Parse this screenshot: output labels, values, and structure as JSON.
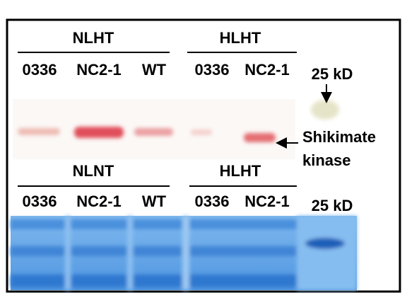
{
  "top_panel": {
    "groups": [
      "NLHT",
      "HLHT"
    ],
    "lanes": [
      "0336",
      "NC2-1",
      "WT",
      "0336",
      "NC2-1"
    ],
    "marker": "25 kD",
    "band_label": [
      "Shikimate",
      "kinase"
    ]
  },
  "bottom_panel": {
    "groups": [
      "NLNT",
      "HLHT"
    ],
    "lanes": [
      "0336",
      "NC2-1",
      "WT",
      "0336",
      "NC2-1"
    ],
    "marker": "25 kD"
  }
}
